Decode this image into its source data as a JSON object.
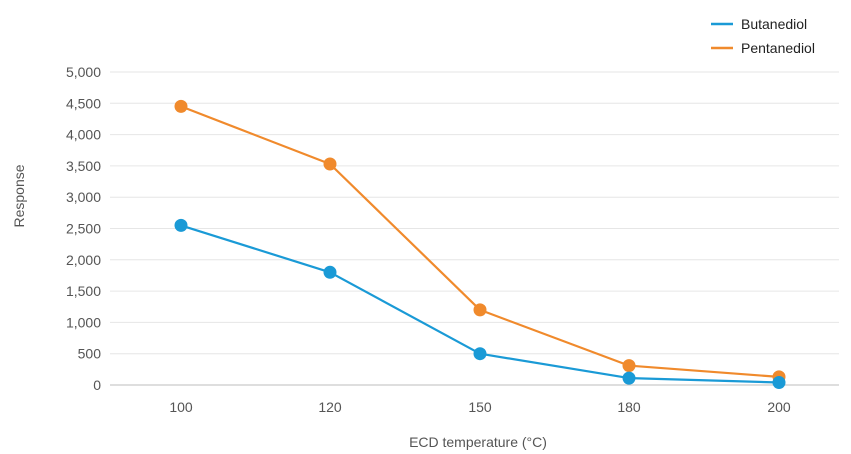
{
  "chart_data": {
    "type": "line",
    "x": [
      "100",
      "120",
      "150",
      "180",
      "200"
    ],
    "xlabel": "ECD temperature (°C)",
    "ylabel": "Response",
    "ylim": [
      0,
      5000
    ],
    "yticks": [
      0,
      500,
      1000,
      1500,
      2000,
      2500,
      3000,
      3500,
      4000,
      4500,
      5000
    ],
    "ytick_labels": [
      "0",
      "500",
      "1,000",
      "1,500",
      "2,000",
      "2,500",
      "3,000",
      "3,500",
      "4,000",
      "4,500",
      "5,000"
    ],
    "grid": true,
    "legend_position": "top-right",
    "series": [
      {
        "name": "Butanediol",
        "color": "#1a9ad6",
        "values": [
          2550,
          1800,
          500,
          110,
          40
        ]
      },
      {
        "name": "Pentanediol",
        "color": "#f08a2c",
        "values": [
          4450,
          3530,
          1200,
          310,
          130
        ]
      }
    ]
  }
}
